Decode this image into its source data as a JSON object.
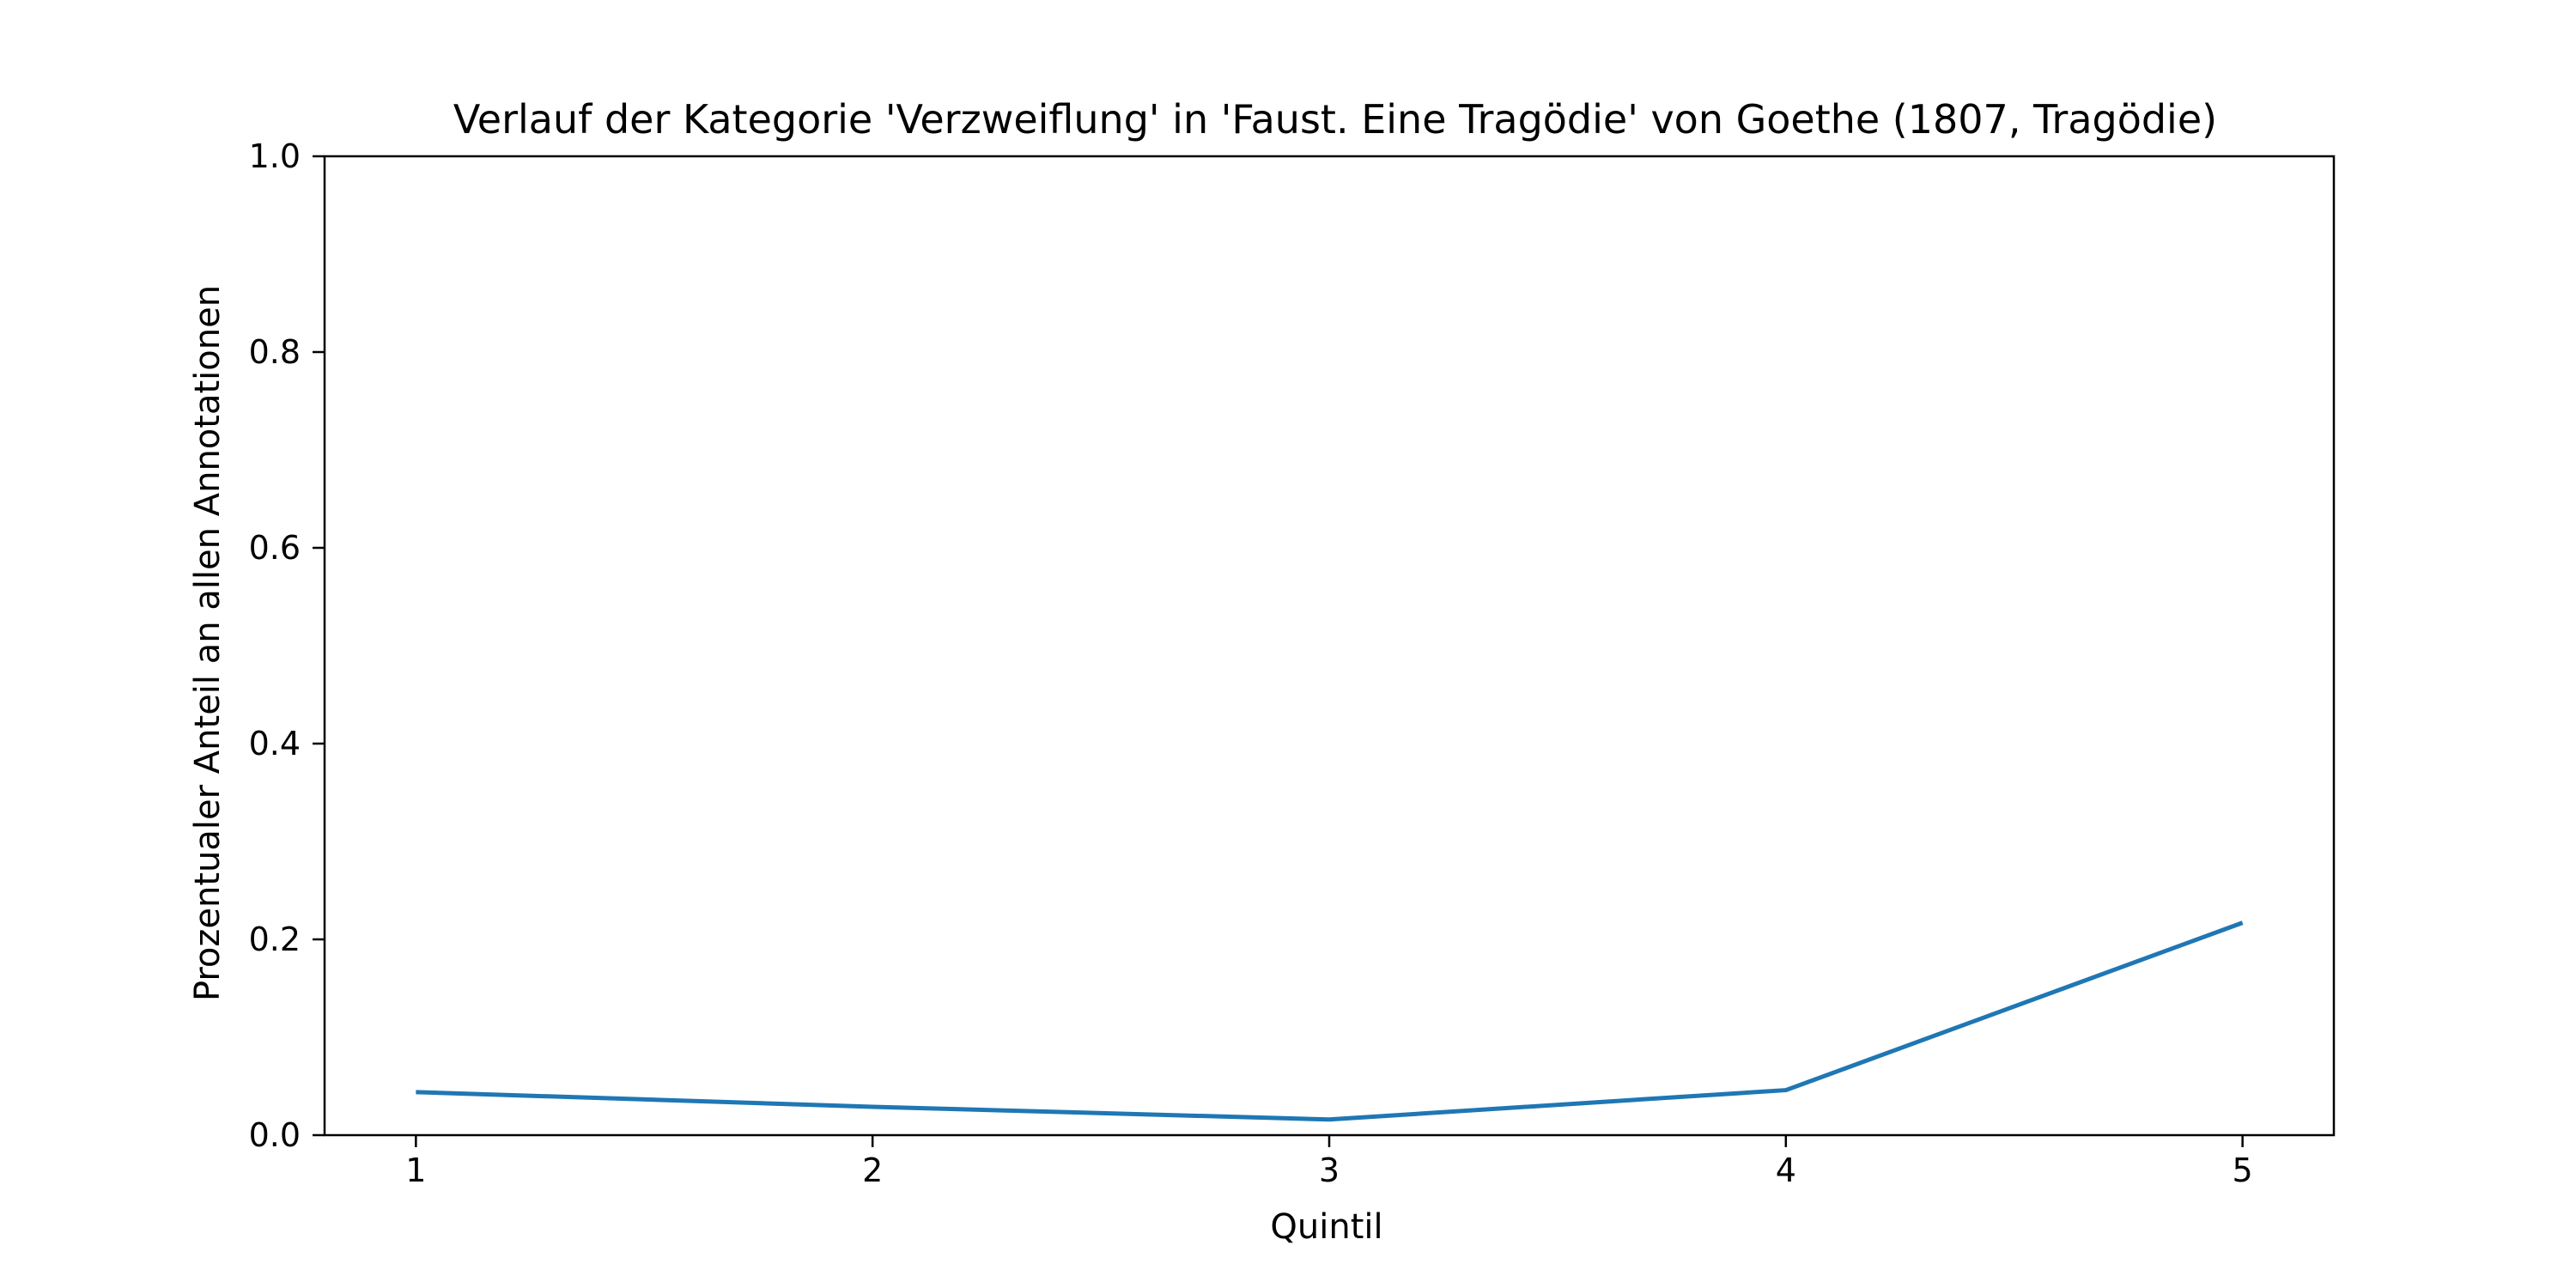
{
  "chart_data": {
    "type": "line",
    "title": "Verlauf der Kategorie 'Verzweiflung' in 'Faust. Eine Tragödie' von Goethe (1807, Tragödie)",
    "xlabel": "Quintil",
    "ylabel": "Prozentualer Anteil an allen Annotationen",
    "x": [
      1,
      2,
      3,
      4,
      5
    ],
    "x_tick_labels": [
      "1",
      "2",
      "3",
      "4",
      "5"
    ],
    "y_ticks": [
      0.0,
      0.2,
      0.4,
      0.6,
      0.8,
      1.0
    ],
    "y_tick_labels": [
      "0.0",
      "0.2",
      "0.4",
      "0.6",
      "0.8",
      "1.0"
    ],
    "xlim": [
      0.8,
      5.2
    ],
    "ylim": [
      0.0,
      1.0
    ],
    "grid": false,
    "series": [
      {
        "values": [
          0.044,
          0.029,
          0.016,
          0.046,
          0.217
        ],
        "color": "#1f77b4"
      }
    ]
  }
}
